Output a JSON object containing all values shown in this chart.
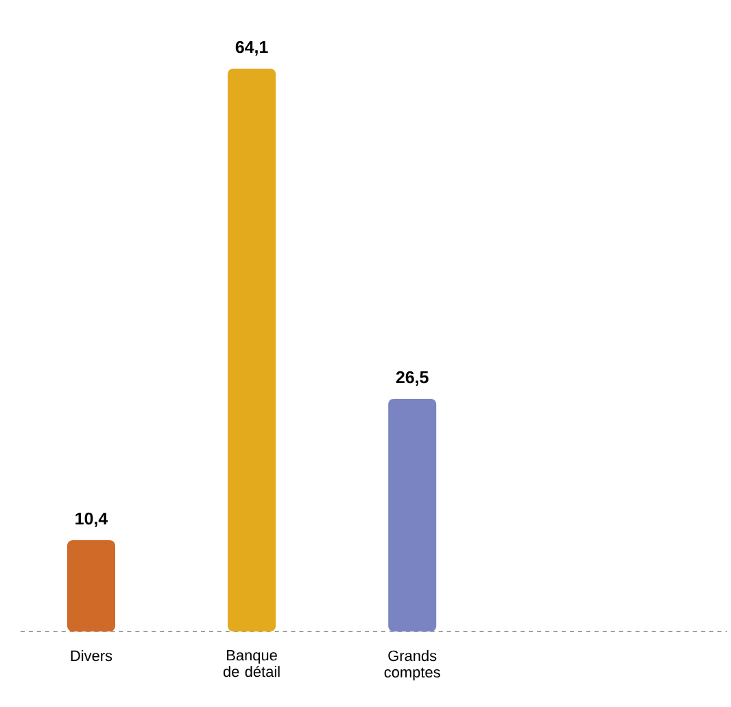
{
  "chart_data": {
    "type": "bar",
    "categories": [
      "Divers",
      "Banque de détail",
      "Grands comptes"
    ],
    "values": [
      10.4,
      64.1,
      26.5
    ],
    "colors": [
      "#d06a28",
      "#e2aa1c",
      "#7a84c2"
    ],
    "value_labels": [
      "10,4",
      "64,1",
      "26,5"
    ]
  }
}
